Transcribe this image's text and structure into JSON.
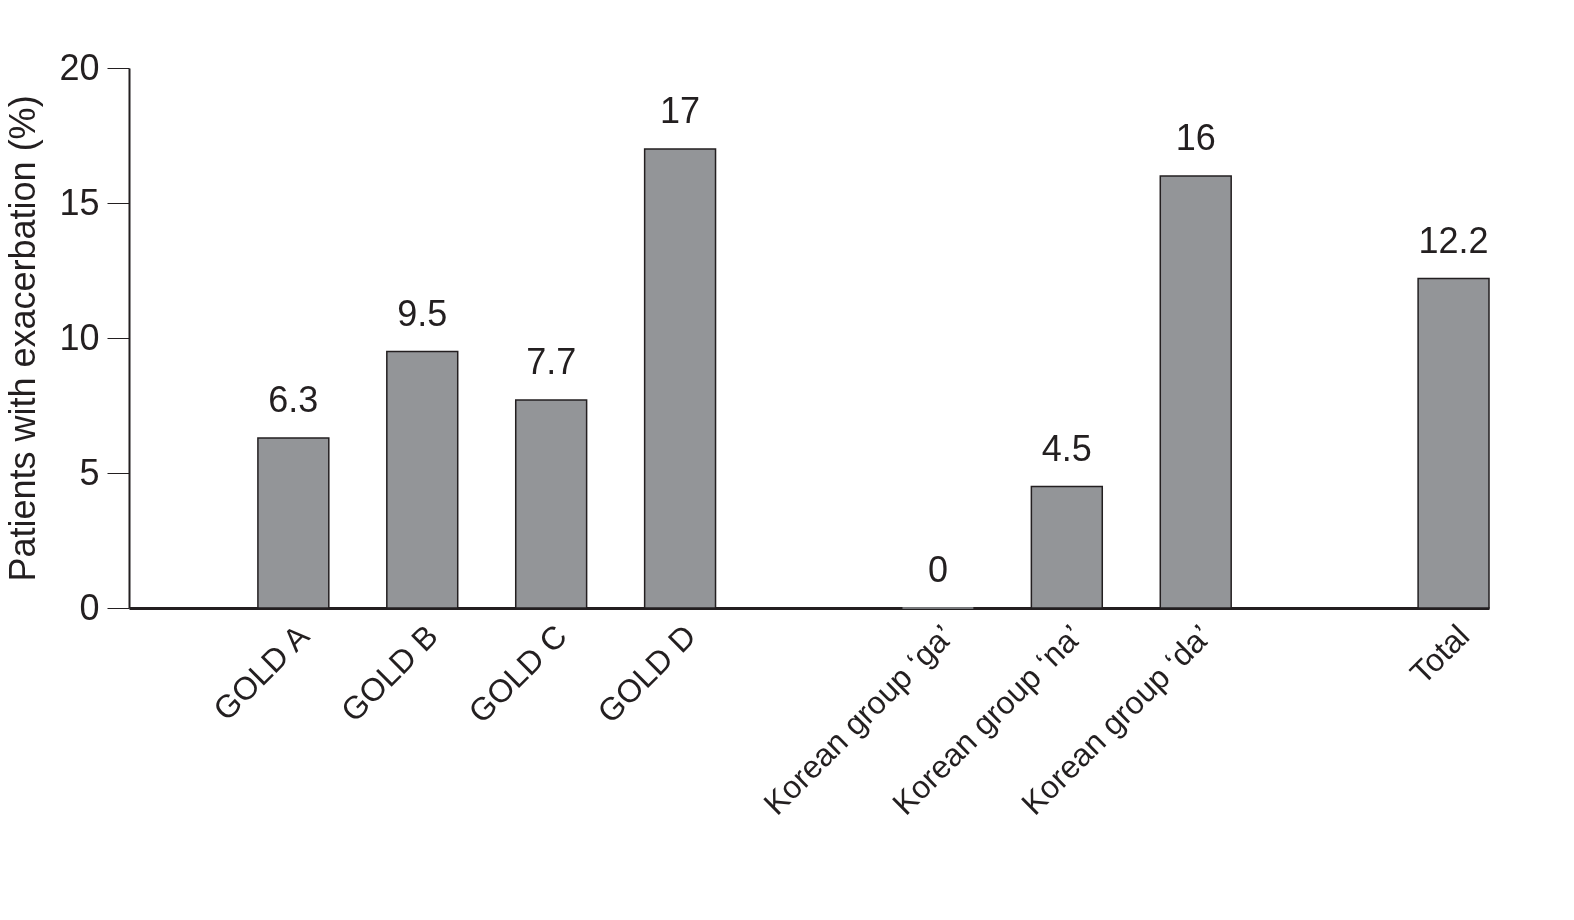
{
  "chart_data": {
    "type": "bar",
    "ylabel": "Patients with exacerbation (%)",
    "categories": [
      null,
      "GOLD A",
      "GOLD B",
      "GOLD C",
      "GOLD D",
      null,
      "Korean group ‘ga’",
      "Korean group ‘na’",
      "Korean group ‘da’",
      null,
      "Total"
    ],
    "values": [
      null,
      6.3,
      9.5,
      7.7,
      17,
      null,
      0,
      4.5,
      16,
      null,
      12.2
    ],
    "color": "#939598",
    "ylim": [
      0,
      20
    ],
    "yticks": [
      0,
      5,
      10,
      15,
      20
    ],
    "grid": false,
    "data_labels": true
  }
}
